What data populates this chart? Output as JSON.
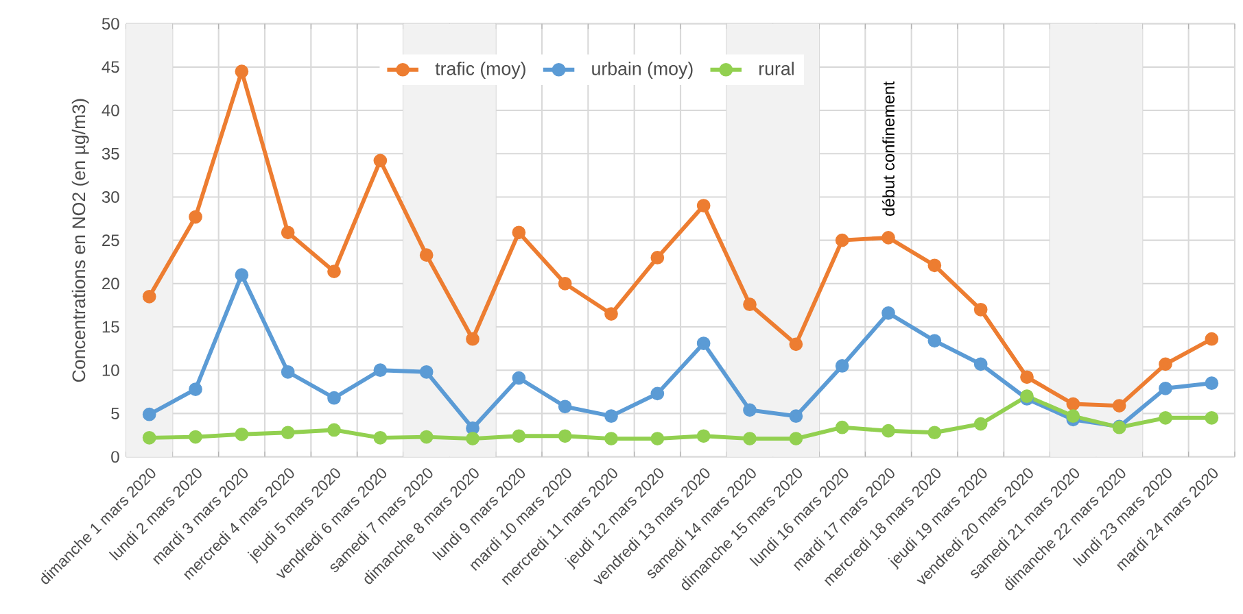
{
  "chart_data": {
    "type": "line",
    "ylabel": "Concentrations en NO2 (en µg/m3)",
    "categories": [
      "dimanche 1 mars 2020",
      "lundi 2 mars 2020",
      "mardi 3 mars 2020",
      "mercredi 4 mars 2020",
      "jeudi 5 mars 2020",
      "vendredi 6 mars 2020",
      "samedi 7 mars 2020",
      "dimanche 8 mars 2020",
      "lundi 9 mars 2020",
      "mardi 10 mars 2020",
      "mercredi 11 mars 2020",
      "jeudi 12 mars 2020",
      "vendredi 13 mars 2020",
      "samedi 14 mars 2020",
      "dimanche 15 mars 2020",
      "lundi 16 mars 2020",
      "mardi 17 mars 2020",
      "mercredi 18 mars 2020",
      "jeudi 19 mars 2020",
      "vendredi 20 mars 2020",
      "samedi 21 mars 2020",
      "dimanche 22 mars 2020",
      "lundi 23 mars 2020",
      "mardi 24 mars 2020"
    ],
    "series": [
      {
        "name": "trafic (moy)",
        "color": "#ed7d31",
        "values": [
          18.5,
          27.7,
          44.5,
          25.9,
          21.4,
          34.2,
          23.3,
          13.6,
          25.9,
          20,
          16.5,
          23,
          29,
          17.6,
          13,
          25,
          25.3,
          22.1,
          17,
          9.2,
          6.1,
          5.9,
          10.7,
          13.6
        ]
      },
      {
        "name": "urbain (moy)",
        "color": "#5b9bd5",
        "values": [
          4.9,
          7.8,
          21,
          9.8,
          6.8,
          10,
          9.8,
          3.3,
          9.1,
          5.8,
          4.7,
          7.3,
          13.1,
          5.4,
          4.7,
          10.5,
          16.6,
          13.4,
          10.7,
          6.7,
          4.3,
          3.5,
          7.9,
          8.5
        ]
      },
      {
        "name": "rural",
        "color": "#92d050",
        "values": [
          2.2,
          2.3,
          2.6,
          2.8,
          3.1,
          2.2,
          2.3,
          2.1,
          2.4,
          2.4,
          2.1,
          2.1,
          2.4,
          2.1,
          2.1,
          3.4,
          3.0,
          2.8,
          3.8,
          7.0,
          4.7,
          3.4,
          4.5,
          4.5
        ]
      }
    ],
    "ylim": [
      0,
      50
    ],
    "yticks": [
      0,
      5,
      10,
      15,
      20,
      25,
      30,
      35,
      40,
      45,
      50
    ],
    "bands": [
      {
        "axis": "x",
        "from": "dimanche 1 mars 2020",
        "to": "dimanche 1 mars 2020",
        "color": "#f2f2f2"
      },
      {
        "axis": "x",
        "from": "samedi 7 mars 2020",
        "to": "dimanche 8 mars 2020",
        "color": "#f2f2f2"
      },
      {
        "axis": "x",
        "from": "samedi 14 mars 2020",
        "to": "dimanche 15 mars 2020",
        "color": "#f2f2f2"
      },
      {
        "axis": "x",
        "from": "samedi 21 mars 2020",
        "to": "dimanche 22 mars 2020",
        "color": "#f2f2f2"
      }
    ],
    "annotations": [
      "début confinement"
    ],
    "grid": true,
    "legend": "top",
    "marker": "circle",
    "line_style": "solid"
  }
}
